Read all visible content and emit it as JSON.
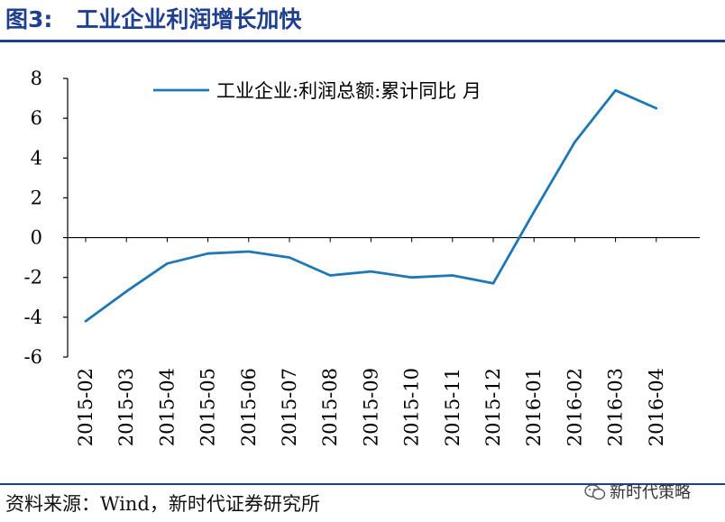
{
  "figure": {
    "number": "图3:",
    "title": "工业企业利润增长加快"
  },
  "source_text": "资料来源：Wind，新时代证券研究所",
  "watermark": {
    "icon": "wechat-icon",
    "text": "新时代策略"
  },
  "colors": {
    "title": "#1f3f8f",
    "series": "#1f77b4",
    "axis": "#000000"
  },
  "chart_data": {
    "type": "line",
    "title": "",
    "xlabel": "",
    "ylabel": "",
    "x": [
      "2015-02",
      "2015-03",
      "2015-04",
      "2015-05",
      "2015-06",
      "2015-07",
      "2015-08",
      "2015-09",
      "2015-10",
      "2015-11",
      "2015-12",
      "2016-01",
      "2016-02",
      "2016-03",
      "2016-04"
    ],
    "series": [
      {
        "name": "工业企业:利润总额:累计同比 月",
        "values": [
          -4.2,
          -2.7,
          -1.3,
          -0.8,
          -0.7,
          -1.0,
          -1.9,
          -1.7,
          -2.0,
          -1.9,
          -2.3,
          1.3,
          4.8,
          7.4,
          6.5
        ]
      }
    ],
    "ylim": [
      -6,
      8
    ],
    "yticks": [
      8,
      6,
      4,
      2,
      0,
      -2,
      -4,
      -6
    ],
    "grid": false,
    "legend_position": "top"
  }
}
